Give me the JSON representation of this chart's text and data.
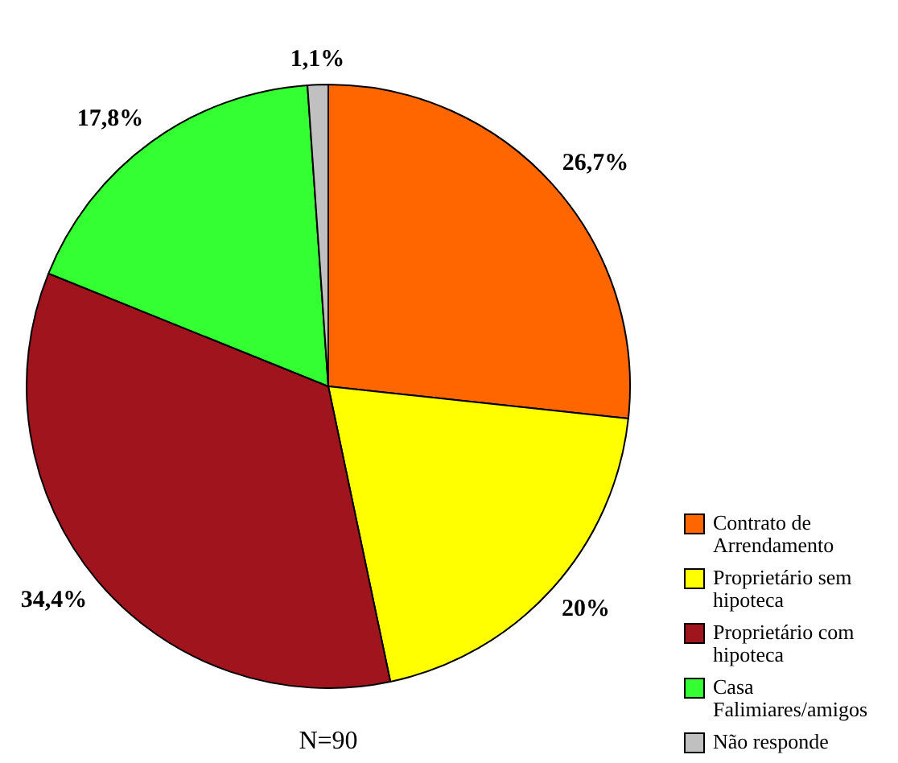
{
  "chart_data": {
    "type": "pie",
    "categories": [
      "Contrato de Arrendamento",
      "Proprietário sem hipoteca",
      "Proprietário com hipoteca",
      "Casa Falimiares/amigos",
      "Não responde"
    ],
    "values": [
      26.7,
      20,
      34.4,
      17.8,
      1.1
    ],
    "colors": [
      "#ff6600",
      "#ffff00",
      "#a0141e",
      "#33ff33",
      "#c0c0c0"
    ],
    "value_labels": [
      "26,7%",
      "20%",
      "34,4%",
      "17,8%",
      "1,1%"
    ],
    "legend": "bottom right",
    "annotations": [
      "N=90"
    ]
  }
}
